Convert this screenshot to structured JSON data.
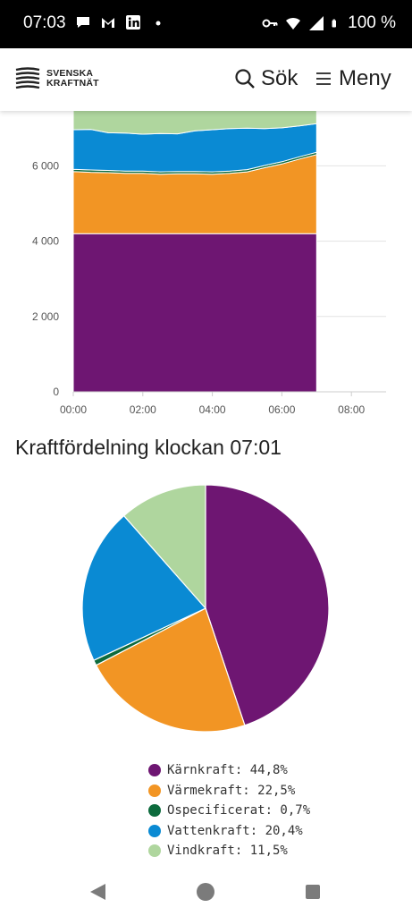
{
  "status_bar": {
    "time": "07:03",
    "battery": "100 %",
    "icons": [
      "chat-bubble-icon",
      "gmail-icon",
      "linkedin-icon",
      "dot-icon",
      "key-icon",
      "wifi-icon",
      "signal-icon",
      "battery-icon"
    ]
  },
  "header": {
    "logo_line1": "SVENSKA",
    "logo_line2": "KRAFTNÄT",
    "search_label": "Sök",
    "menu_label": "Meny"
  },
  "colors": {
    "karnkraft": "#6e1672",
    "varmekraft": "#f29524",
    "ospecificerat": "#0d6b3d",
    "vattenkraft": "#0a8ad3",
    "vindkraft": "#afd69e"
  },
  "chart_data": [
    {
      "type": "area",
      "title": "",
      "xlabel": "",
      "ylabel": "",
      "x_ticks": [
        "00:00",
        "02:00",
        "04:00",
        "06:00",
        "08:00"
      ],
      "y_ticks": [
        "0",
        "2 000",
        "4 000",
        "6 000"
      ],
      "ylim": [
        0,
        7800
      ],
      "x_hours": [
        0,
        0.5,
        1,
        1.5,
        2,
        2.5,
        3,
        3.5,
        4,
        4.5,
        5,
        5.5,
        6,
        6.5,
        7
      ],
      "stacked": true,
      "grid": "horizontal",
      "series": [
        {
          "name": "Kärnkraft",
          "values": [
            4200,
            4200,
            4200,
            4200,
            4200,
            4200,
            4200,
            4200,
            4200,
            4200,
            4200,
            4200,
            4200,
            4200,
            4200
          ]
        },
        {
          "name": "Värmekraft",
          "values": [
            1650,
            1630,
            1620,
            1600,
            1600,
            1580,
            1590,
            1590,
            1580,
            1600,
            1640,
            1750,
            1850,
            1980,
            2100
          ]
        },
        {
          "name": "Ospecificerat",
          "values": [
            60,
            60,
            60,
            60,
            60,
            60,
            60,
            60,
            60,
            60,
            60,
            60,
            60,
            60,
            60
          ]
        },
        {
          "name": "Vattenkraft",
          "values": [
            1050,
            1080,
            1000,
            1010,
            980,
            1020,
            1000,
            1080,
            1120,
            1130,
            1100,
            980,
            900,
            820,
            760
          ]
        },
        {
          "name": "Vindkraft",
          "values": [
            600,
            600,
            620,
            640,
            660,
            640,
            640,
            620,
            600,
            600,
            600,
            600,
            600,
            600,
            600
          ]
        }
      ]
    },
    {
      "type": "pie",
      "title": "Kraftfördelning klockan 07:01",
      "series": [
        {
          "name": "Kärnkraft",
          "value": 44.8,
          "label": "Kärnkraft: 44,8%"
        },
        {
          "name": "Värmekraft",
          "value": 22.5,
          "label": "Värmekraft: 22,5%"
        },
        {
          "name": "Ospecificerat",
          "value": 0.7,
          "label": "Ospecificerat: 0,7%"
        },
        {
          "name": "Vattenkraft",
          "value": 20.4,
          "label": "Vattenkraft: 20,4%"
        },
        {
          "name": "Vindkraft",
          "value": 11.5,
          "label": "Vindkraft: 11,5%"
        }
      ],
      "legend": "bottom"
    }
  ]
}
